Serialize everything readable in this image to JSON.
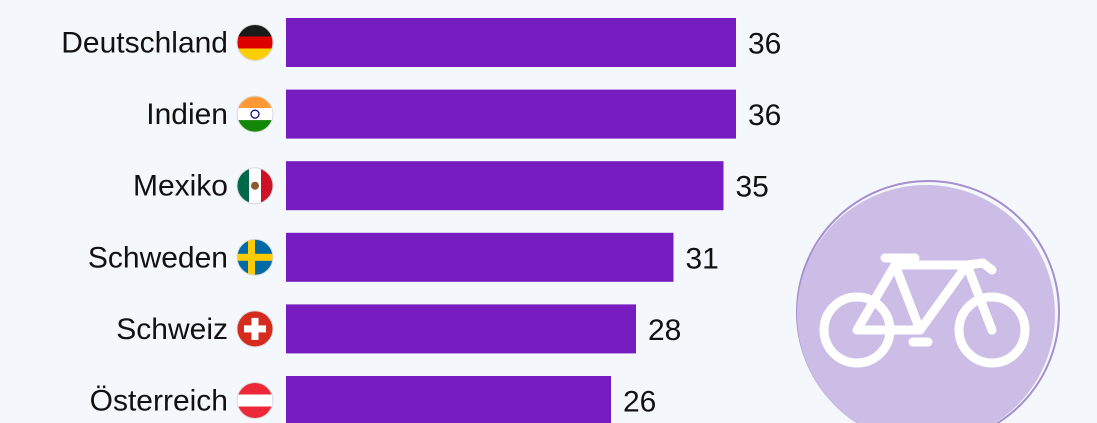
{
  "colors": {
    "background": "#f4f7fb",
    "bar": "#771cc0",
    "text": "#111111",
    "badge_fill": "#cbbde6",
    "badge_ring": "#a58fd0",
    "icon": "#ffffff"
  },
  "decoration": {
    "badge_icon": "bicycle-icon"
  },
  "chart_data": {
    "type": "bar",
    "orientation": "horizontal",
    "categories": [
      "Deutschland",
      "Indien",
      "Mexiko",
      "Schweden",
      "Schweiz",
      "Österreich"
    ],
    "values": [
      36,
      36,
      35,
      31,
      28,
      26
    ],
    "flags": [
      "germany-flag-icon",
      "india-flag-icon",
      "mexico-flag-icon",
      "sweden-flag-icon",
      "switzerland-flag-icon",
      "austria-flag-icon"
    ],
    "title": "",
    "xlabel": "",
    "ylabel": "",
    "xlim": [
      0,
      36
    ],
    "grid": false,
    "legend": "none",
    "data_labels": true
  }
}
